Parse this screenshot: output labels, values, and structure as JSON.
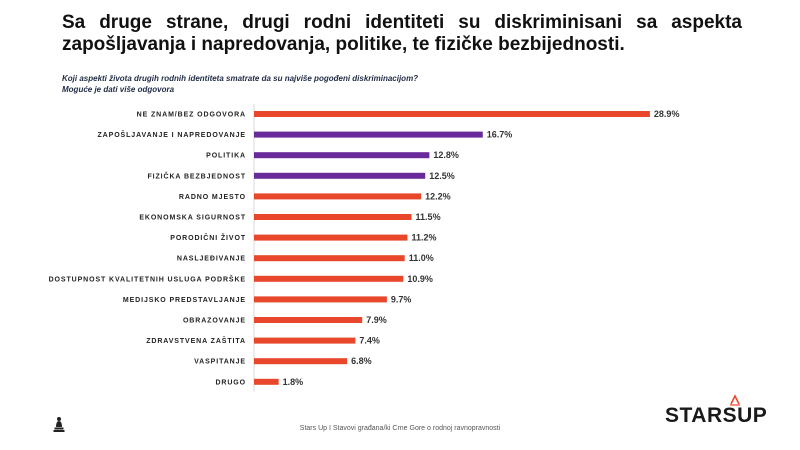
{
  "title": "Sa druge strane, drugi rodni identiteti su diskriminisani sa aspekta zapošljavanja i napredovanja, politike, te fizičke bezbijednosti.",
  "question": "Koji aspekti života drugih rodnih identiteta smatrate da su najviše pogođeni diskriminacijom?",
  "note": "Moguće je dati više odgovora",
  "footer": "Stars Up I Stavovi građana/ki Crne Gore o rodnoj ravnopravnosti",
  "logo": "STARSUP",
  "colors": {
    "orange": "#e8472b",
    "purple": "#6a2b9a"
  },
  "chart_data": {
    "type": "bar",
    "orientation": "horizontal",
    "categories": [
      "NE ZNAM/BEZ ODGOVORA",
      "ZAPOŠLJAVANJE I NAPREDOVANJE",
      "POLITIKA",
      "FIZIČKA BEZBJEDNOST",
      "RADNO MJESTO",
      "EKONOMSKA SIGURNOST",
      "PORODIČNI ŽIVOT",
      "NASLJEĐIVANJE",
      "DOSTUPNOST KVALITETNIH USLUGA PODRŠKE",
      "MEDIJSKO PREDSTAVLJANJE",
      "OBRAZOVANJE",
      "ZDRAVSTVENA ZAŠTITA",
      "VASPITANJE",
      "DRUGO"
    ],
    "values": [
      28.9,
      16.7,
      12.8,
      12.5,
      12.2,
      11.5,
      11.2,
      11.0,
      10.9,
      9.7,
      7.9,
      7.4,
      6.8,
      1.8
    ],
    "value_labels": [
      "28.9%",
      "16.7%",
      "12.8%",
      "12.5%",
      "12.2%",
      "11.5%",
      "11.2%",
      "11.0%",
      "10.9%",
      "9.7%",
      "7.9%",
      "7.4%",
      "6.8%",
      "1.8%"
    ],
    "highlighted": [
      false,
      true,
      true,
      true,
      false,
      false,
      false,
      false,
      false,
      false,
      false,
      false,
      false,
      false
    ],
    "xlim": [
      0,
      30
    ],
    "grid": false,
    "legend": "none"
  }
}
